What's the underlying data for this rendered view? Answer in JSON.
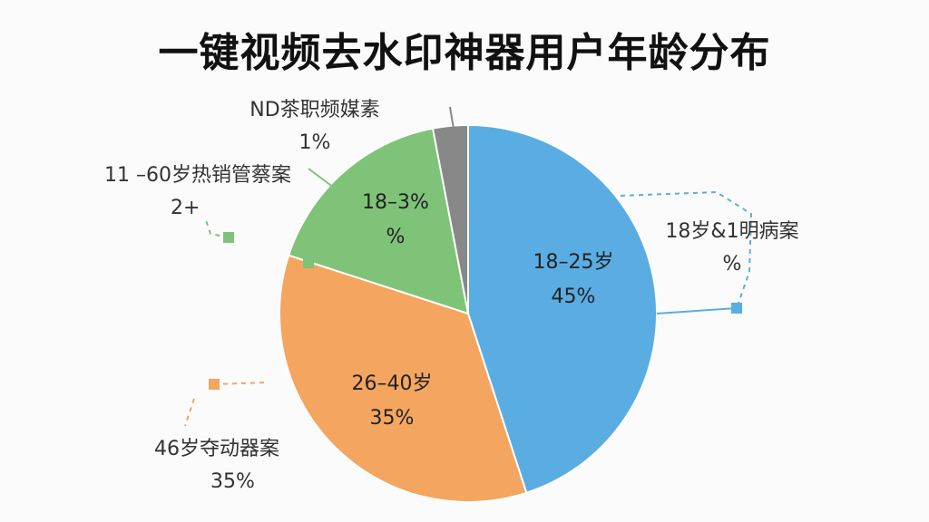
{
  "chart_data": {
    "type": "pie",
    "title": "一键视频去水印神器用户年龄分布",
    "slices": [
      {
        "label": "18–25岁",
        "value": 45,
        "value_label": "45%",
        "color": "#5aade3"
      },
      {
        "label": "26–40岁",
        "value": 35,
        "value_label": "35%",
        "color": "#f4a560"
      },
      {
        "label": "18–3%",
        "value": 17,
        "value_label": "%",
        "color": "#7fc378"
      },
      {
        "label": "",
        "value": 3,
        "value_label": "",
        "color": "#888888"
      }
    ],
    "callouts": [
      {
        "label": "ND茶职频媒素",
        "value": "1%"
      },
      {
        "label": "11 –60岁热销管蔡案",
        "value": "2+"
      },
      {
        "label": "18岁&1明病案",
        "value": "%"
      },
      {
        "label": "46岁夺动器案",
        "value": "35%"
      }
    ]
  }
}
